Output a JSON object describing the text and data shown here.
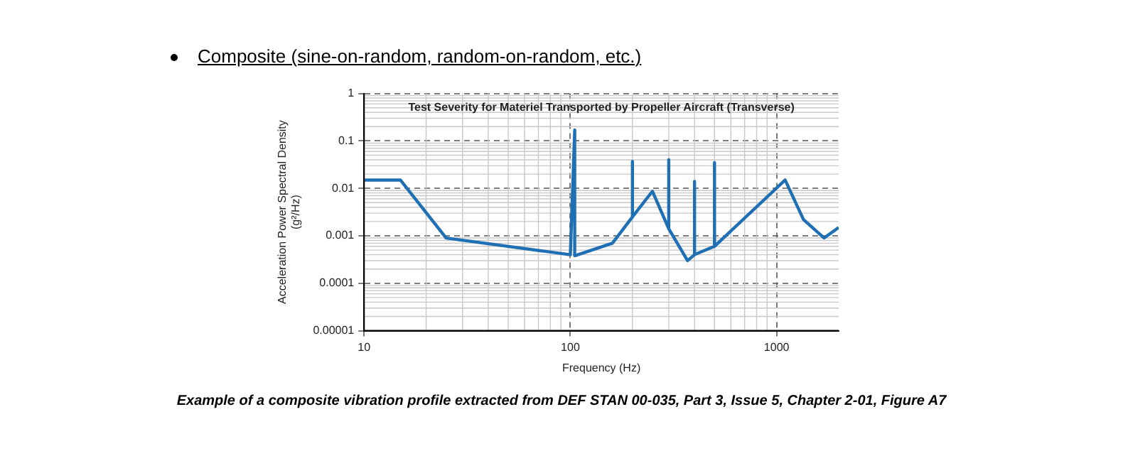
{
  "chart_data": {
    "type": "line",
    "title": "Test Severity for Materiel Transported by Propeller Aircraft (Transverse)",
    "xlabel": "Frequency (Hz)",
    "ylabel": "Acceleration Power Spectral Density\n(g²/Hz)",
    "annotations": [
      "Composite (sine-on-random, random-on-random, etc.)",
      "Example of a composite vibration profile extracted from DEF STAN 00-035, Part 3, Issue 5, Chapter 2-01, Figure A7"
    ],
    "series": [
      {
        "color": "#1f6fb4",
        "x": [
          10,
          15,
          25,
          100,
          105,
          105,
          160,
          200,
          200,
          200,
          250,
          300,
          300,
          300,
          370,
          400,
          400,
          400,
          500,
          500,
          500,
          1100,
          1350,
          1700,
          2000
        ],
        "values": [
          0.015,
          0.015,
          0.0009,
          0.0004,
          0.17,
          0.00038,
          0.0007,
          0.0025,
          0.037,
          0.0025,
          0.0087,
          0.0014,
          0.04,
          0.0014,
          0.0003,
          0.0004,
          0.014,
          0.0004,
          0.0006,
          0.035,
          0.0006,
          0.015,
          0.0022,
          0.0009,
          0.0015
        ]
      }
    ],
    "log": "xy",
    "xlim": [
      10,
      2000
    ],
    "xticks": [
      10,
      100,
      1000
    ],
    "ylim": [
      1e-05,
      1
    ],
    "yticks": [
      {
        "value": 1e-05,
        "label": "0.00001"
      },
      0.0001,
      0.001,
      0.01,
      0.1,
      1
    ],
    "grid": true,
    "marker": "none",
    "line_style": "solid"
  }
}
